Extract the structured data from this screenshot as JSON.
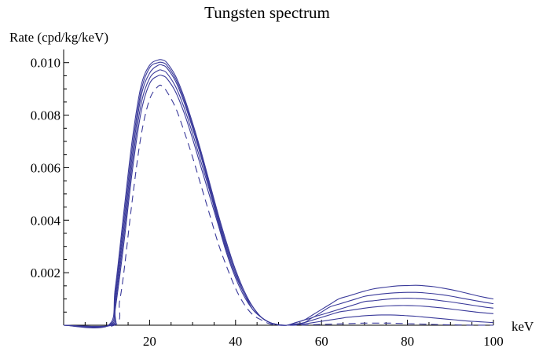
{
  "chart_data": {
    "type": "line",
    "title": "Tungsten spectrum",
    "xlabel": "keV",
    "ylabel": "Rate (cpd/kg/keV)",
    "xlim": [
      0,
      100
    ],
    "ylim": [
      0,
      0.0105
    ],
    "x_major_ticks": [
      20,
      40,
      60,
      80,
      100
    ],
    "x_tick_labels": [
      "20",
      "40",
      "60",
      "80",
      "100"
    ],
    "y_major_ticks": [
      0.002,
      0.004,
      0.006,
      0.008,
      0.01
    ],
    "y_tick_labels": [
      "0.002",
      "0.004",
      "0.006",
      "0.008",
      "0.010"
    ],
    "grid": false,
    "legend": "none",
    "color": "#3a3a9a",
    "series": [
      {
        "style": "solid",
        "x": [
          0,
          10.4,
          12,
          14,
          16,
          18,
          20,
          22,
          23,
          24,
          26,
          28,
          30,
          32,
          34,
          36,
          38,
          40,
          42,
          44,
          46,
          48,
          50,
          52,
          54,
          56,
          58,
          60,
          62,
          64,
          66,
          68,
          70,
          72,
          74,
          76,
          78,
          80,
          82,
          84,
          86,
          88,
          90,
          92,
          94,
          96,
          98,
          100
        ],
        "y": [
          0,
          0,
          0.0014,
          0.0043,
          0.0071,
          0.0091,
          0.0099,
          0.0101,
          0.0101,
          0.01,
          0.0095,
          0.0087,
          0.0077,
          0.0066,
          0.0054,
          0.0042,
          0.0031,
          0.0021,
          0.0013,
          0.0007,
          0.0003,
          0.0001,
          2e-05,
          0,
          0.0001,
          0.0002,
          0.0004,
          0.0006,
          0.0008,
          0.001,
          0.0011,
          0.0012,
          0.0013,
          0.00138,
          0.00143,
          0.00147,
          0.0015,
          0.00151,
          0.00152,
          0.0015,
          0.00147,
          0.00142,
          0.00136,
          0.00129,
          0.00121,
          0.00113,
          0.00106,
          0.001
        ]
      },
      {
        "style": "solid",
        "x": [
          0,
          10.6,
          12,
          14,
          16,
          18,
          20,
          22,
          23,
          24,
          26,
          28,
          30,
          32,
          34,
          36,
          38,
          40,
          42,
          44,
          46,
          48,
          50,
          52,
          54,
          56,
          58,
          60,
          62,
          64,
          66,
          68,
          70,
          72,
          74,
          76,
          78,
          80,
          82,
          84,
          86,
          88,
          90,
          92,
          94,
          96,
          98,
          100
        ],
        "y": [
          0,
          0,
          0.0012,
          0.004,
          0.0068,
          0.0089,
          0.0098,
          0.01,
          0.01,
          0.0099,
          0.0094,
          0.0086,
          0.0076,
          0.0065,
          0.0053,
          0.0041,
          0.003,
          0.0021,
          0.0013,
          0.0007,
          0.0003,
          0.0001,
          2e-05,
          0,
          0.0001,
          0.0002,
          0.0003,
          0.0005,
          0.0007,
          0.0008,
          0.0009,
          0.001,
          0.0011,
          0.00115,
          0.00119,
          0.00122,
          0.00124,
          0.00125,
          0.00125,
          0.00123,
          0.0012,
          0.00116,
          0.00111,
          0.00105,
          0.00099,
          0.00093,
          0.00087,
          0.00082
        ]
      },
      {
        "style": "solid",
        "x": [
          0,
          10.8,
          12,
          14,
          16,
          18,
          20,
          22,
          23,
          24,
          26,
          28,
          30,
          32,
          34,
          36,
          38,
          40,
          42,
          44,
          46,
          48,
          50,
          52,
          54,
          56,
          58,
          60,
          62,
          64,
          66,
          68,
          70,
          72,
          74,
          76,
          78,
          80,
          82,
          84,
          86,
          88,
          90,
          92,
          94,
          96,
          98,
          100
        ],
        "y": [
          0,
          0,
          0.001,
          0.0037,
          0.0065,
          0.0087,
          0.0096,
          0.0099,
          0.0099,
          0.0098,
          0.0093,
          0.0085,
          0.0075,
          0.0064,
          0.0052,
          0.004,
          0.0029,
          0.002,
          0.0012,
          0.0007,
          0.0003,
          0.0001,
          2e-05,
          0,
          5e-05,
          0.0001,
          0.0003,
          0.0004,
          0.0005,
          0.0006,
          0.0007,
          0.0008,
          0.0009,
          0.00093,
          0.00097,
          0.001,
          0.00102,
          0.00103,
          0.00102,
          0.001,
          0.00097,
          0.00093,
          0.00089,
          0.00084,
          0.00079,
          0.00074,
          0.00069,
          0.00065
        ]
      },
      {
        "style": "solid",
        "x": [
          0,
          11.0,
          12,
          14,
          16,
          18,
          20,
          22,
          23,
          24,
          26,
          28,
          30,
          32,
          34,
          36,
          38,
          40,
          42,
          44,
          46,
          48,
          50,
          52,
          54,
          56,
          58,
          60,
          62,
          64,
          66,
          68,
          70,
          72,
          74,
          76,
          78,
          80,
          82,
          84,
          86,
          88,
          90,
          92,
          94,
          96,
          98,
          100
        ],
        "y": [
          0,
          0,
          0.0008,
          0.0034,
          0.0062,
          0.0084,
          0.0094,
          0.0097,
          0.0097,
          0.0096,
          0.0091,
          0.0083,
          0.0073,
          0.0062,
          0.0051,
          0.0039,
          0.0028,
          0.0019,
          0.0012,
          0.0006,
          0.0003,
          0.0001,
          1e-05,
          0,
          4e-05,
          0.0001,
          0.0002,
          0.0003,
          0.0004,
          0.0005,
          0.00055,
          0.0006,
          0.00065,
          0.00069,
          0.00072,
          0.00074,
          0.00075,
          0.00075,
          0.00074,
          0.00072,
          0.00069,
          0.00066,
          0.00062,
          0.00058,
          0.00054,
          0.0005,
          0.00047,
          0.00044
        ]
      },
      {
        "style": "solid",
        "x": [
          0,
          11.2,
          12,
          14,
          16,
          18,
          20,
          22,
          23,
          24,
          26,
          28,
          30,
          32,
          34,
          36,
          38,
          40,
          42,
          44,
          46,
          48,
          50,
          52,
          54,
          56,
          58,
          60,
          62,
          64,
          66,
          68,
          70,
          72,
          74,
          76,
          78,
          80,
          82,
          84,
          86,
          88,
          90,
          92,
          94,
          96,
          98,
          100
        ],
        "y": [
          0,
          0,
          0.0006,
          0.0031,
          0.0059,
          0.0081,
          0.0092,
          0.0095,
          0.0095,
          0.0094,
          0.0089,
          0.0081,
          0.0071,
          0.006,
          0.0049,
          0.0038,
          0.0027,
          0.0018,
          0.0011,
          0.0006,
          0.0003,
          0.0001,
          1e-05,
          0,
          2e-05,
          5e-05,
          0.0001,
          0.00015,
          0.0002,
          0.00025,
          0.0003,
          0.00033,
          0.00036,
          0.00038,
          0.00039,
          0.00039,
          0.00038,
          0.00036,
          0.00034,
          0.00031,
          0.00028,
          0.00025,
          0.00022,
          0.00019,
          0.00016,
          0.00014,
          0.00012,
          0.0001
        ]
      },
      {
        "style": "dashed",
        "x": [
          0,
          11.8,
          13,
          14,
          16,
          18,
          20,
          22,
          23,
          24,
          26,
          28,
          30,
          32,
          34,
          36,
          38,
          40,
          42,
          44,
          46,
          48,
          50,
          52,
          54,
          56,
          58,
          60,
          62,
          64,
          66,
          68,
          70,
          72,
          74,
          76,
          78,
          80,
          82,
          84,
          86,
          88,
          90,
          92,
          94,
          96,
          98,
          100
        ],
        "y": [
          0,
          0,
          0.0009,
          0.002,
          0.0048,
          0.0072,
          0.0086,
          0.0091,
          0.0091,
          0.0089,
          0.0083,
          0.0074,
          0.0064,
          0.0053,
          0.0042,
          0.0031,
          0.0022,
          0.0014,
          0.0008,
          0.0004,
          0.0002,
          5e-05,
          0,
          0,
          0,
          1e-05,
          2e-05,
          3e-05,
          4e-05,
          5e-05,
          6e-05,
          7e-05,
          8e-05,
          8e-05,
          8e-05,
          8e-05,
          7e-05,
          6e-05,
          5e-05,
          4e-05,
          3e-05,
          2e-05,
          1.5e-05,
          1e-05,
          5e-06,
          3e-06,
          1e-06,
          0
        ]
      }
    ]
  }
}
